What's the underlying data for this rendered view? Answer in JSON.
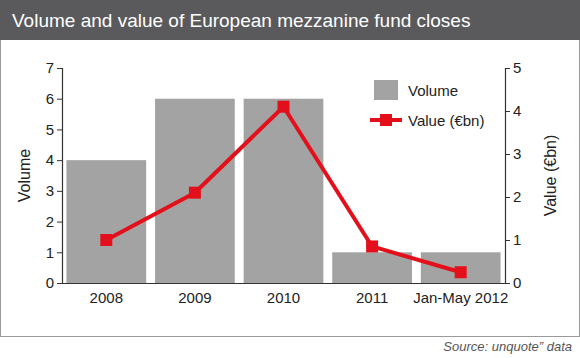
{
  "chart_data": {
    "type": "bar",
    "title": "Volume and value of European mezzanine fund closes",
    "source": "Source: unquote” data",
    "categories": [
      "2008",
      "2009",
      "2010",
      "2011",
      "Jan-May 2012"
    ],
    "series": [
      {
        "name": "Volume",
        "type": "bar",
        "color": "#a3a3a3",
        "values": [
          4,
          6,
          6,
          1,
          1
        ]
      },
      {
        "name": "Value (€bn)",
        "type": "line",
        "axis": "y2",
        "color": "#e3101b",
        "marker": "square",
        "values": [
          1.0,
          2.1,
          4.1,
          0.85,
          0.25
        ]
      }
    ],
    "ylabel": "Volume",
    "y2label": "Value (€bn)",
    "ylim": [
      0,
      7
    ],
    "yticks": [
      0,
      1,
      2,
      3,
      4,
      5,
      6,
      7
    ],
    "y2lim": [
      0,
      5
    ],
    "y2ticks": [
      0,
      1,
      2,
      3,
      4,
      5
    ],
    "grid": false,
    "legend": "top-right"
  }
}
